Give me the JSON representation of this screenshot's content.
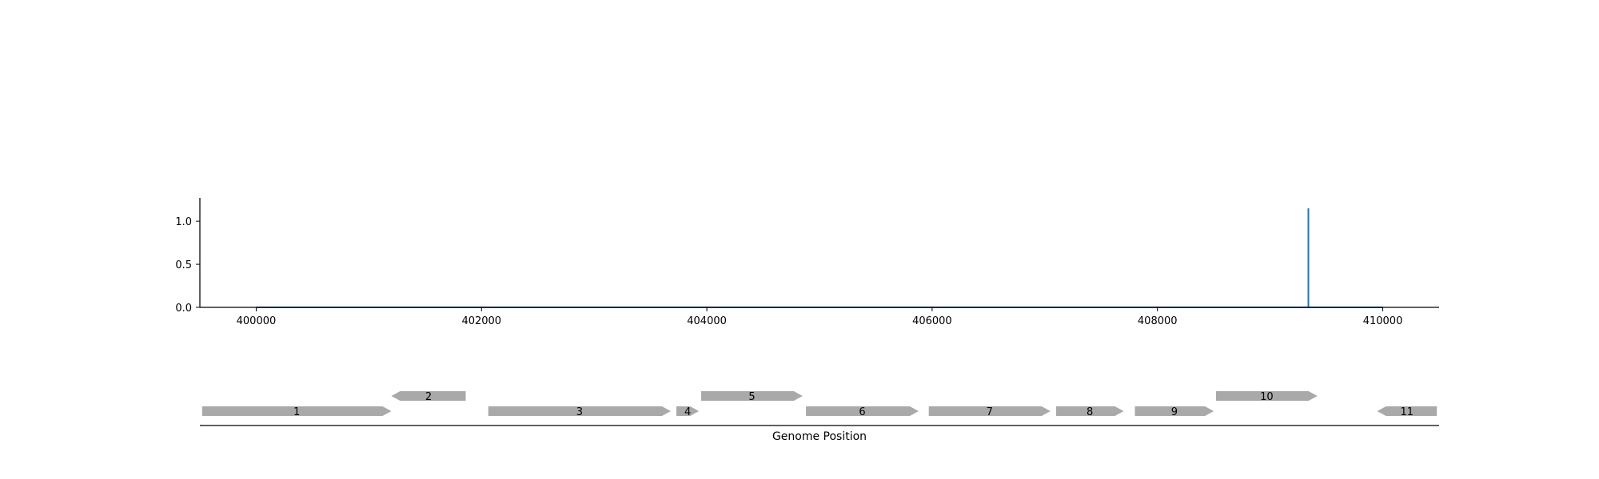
{
  "chart_data": [
    {
      "type": "line",
      "title": "",
      "xlabel": "",
      "ylabel": "",
      "xlim": [
        399500,
        410500
      ],
      "ylim": [
        0,
        1.27
      ],
      "grid": false,
      "line_color": "#1f77b4",
      "x_ticks": [
        400000,
        402000,
        404000,
        406000,
        408000,
        410000
      ],
      "x_tick_labels": [
        "400000",
        "402000",
        "404000",
        "406000",
        "408000",
        "410000"
      ],
      "y_ticks": [
        0.0,
        0.5,
        1.0
      ],
      "y_tick_labels": [
        "0.0",
        "0.5",
        "1.0"
      ],
      "series": [
        {
          "x": [
            400000,
            409340,
            409340,
            409340,
            410000
          ],
          "y": [
            0,
            0,
            1.15,
            0,
            0
          ]
        }
      ]
    },
    {
      "type": "gene-track",
      "xlabel": "Genome Position",
      "xlim": [
        399500,
        410500
      ],
      "gene_color": "#a9a9a9",
      "genes": [
        {
          "label": "1",
          "start": 399520,
          "end": 401200,
          "strand": "+",
          "row": 0
        },
        {
          "label": "2",
          "start": 401200,
          "end": 401860,
          "strand": "-",
          "row": 1
        },
        {
          "label": "3",
          "start": 402060,
          "end": 403680,
          "strand": "+",
          "row": 0
        },
        {
          "label": "4",
          "start": 403730,
          "end": 403930,
          "strand": "+",
          "row": 0
        },
        {
          "label": "5",
          "start": 403950,
          "end": 404850,
          "strand": "+",
          "row": 1
        },
        {
          "label": "6",
          "start": 404880,
          "end": 405880,
          "strand": "+",
          "row": 0
        },
        {
          "label": "7",
          "start": 405970,
          "end": 407050,
          "strand": "+",
          "row": 0
        },
        {
          "label": "8",
          "start": 407100,
          "end": 407700,
          "strand": "+",
          "row": 0
        },
        {
          "label": "9",
          "start": 407800,
          "end": 408500,
          "strand": "+",
          "row": 0
        },
        {
          "label": "10",
          "start": 408520,
          "end": 409420,
          "strand": "+",
          "row": 1
        },
        {
          "label": "11",
          "start": 409950,
          "end": 410480,
          "strand": "-",
          "row": 0
        }
      ]
    }
  ]
}
